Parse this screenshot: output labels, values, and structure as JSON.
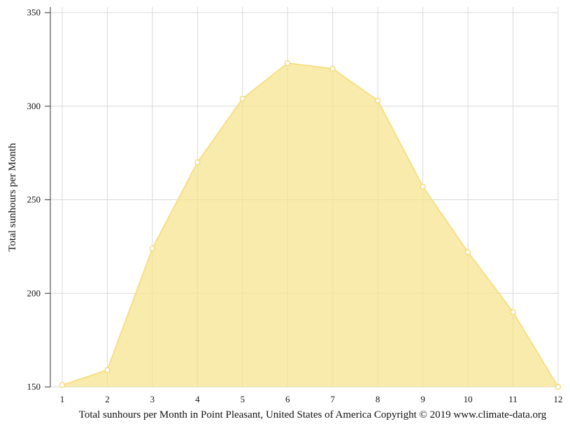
{
  "chart_data": {
    "type": "area",
    "title": "",
    "xlabel": "Total sunhours per Month in Point Pleasant, United States of America Copyright © 2019 www.climate-data.org",
    "ylabel": "Total sunhours per Month",
    "x": [
      1,
      2,
      3,
      4,
      5,
      6,
      7,
      8,
      9,
      10,
      11,
      12
    ],
    "x_tick_labels": [
      "1",
      "2",
      "3",
      "4",
      "5",
      "6",
      "7",
      "8",
      "9",
      "10",
      "11",
      "12"
    ],
    "y_ticks": [
      150,
      200,
      250,
      300,
      350
    ],
    "y_tick_labels": [
      "150",
      "200",
      "250",
      "300",
      "350"
    ],
    "ylim": [
      150,
      353
    ],
    "grid": true,
    "series": [
      {
        "values": [
          151,
          159,
          224,
          270,
          304,
          323,
          320,
          303,
          257,
          222,
          190,
          150
        ],
        "color": "#f7e38a",
        "line_color": "#f7df85",
        "marker_stroke": "#f1d56a"
      }
    ]
  }
}
